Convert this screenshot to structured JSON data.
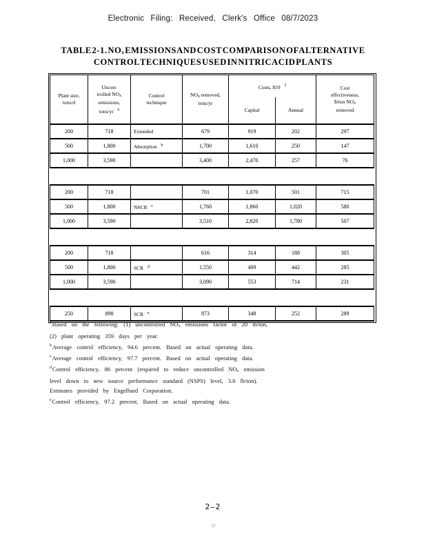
{
  "page": {
    "top_header": "Electronic Filing: Received, Clerk's Office 08/7/2023",
    "page_number": "2—2",
    "footer_mark": "18"
  },
  "title": {
    "line1": "TABLE 2-1. NO{sub:x} EMISSIONS AND COST COMPARISON OF ALTERNATIVE",
    "line2": "CONTROL TECHNIQUES USED IN NITRIC ACID PLANTS"
  },
  "table": {
    "headers": {
      "plant": "Plant size,{br}tons/d",
      "uncontrolled": "Uncon-{br}trolled NO{sub:x}{br}emissions,{br}tons/yr{gap}{sup:a}",
      "technique": "Control{br}technique",
      "removed": "NO{sub:x} removed,{br}tons/yr",
      "costs_group": "Costs, $10{gap}{sup:3}",
      "capital": "Capital",
      "annual": "Annual",
      "cost_effectiveness": "Cost{br}effectiveness,{br}$/ton NO{sub:x}{br}removed"
    },
    "rows": [
      {
        "type": "data",
        "plant": "200",
        "uncontrolled": "718",
        "technique": "Extended",
        "removed": "679",
        "capital": "919",
        "annual": "202",
        "cost_eff": "297"
      },
      {
        "type": "data",
        "plant": "500",
        "uncontrolled": "1,800",
        "technique": "Absorption{gap}{sup:b}",
        "removed": "1,700",
        "capital": "1,610",
        "annual": "250",
        "cost_eff": "147"
      },
      {
        "type": "data",
        "plant": "1,000",
        "uncontrolled": "3,590",
        "technique": "",
        "removed": "3,400",
        "capital": "2,470",
        "annual": "257",
        "cost_eff": "76"
      },
      {
        "type": "spacer"
      },
      {
        "type": "data",
        "plant": "200",
        "uncontrolled": "718",
        "technique": "",
        "removed": "701",
        "capital": "1,070",
        "annual": "501",
        "cost_eff": "715"
      },
      {
        "type": "data",
        "plant": "500",
        "uncontrolled": "1,800",
        "technique": "NSCR{gap}{sup:c}",
        "removed": "1,760",
        "capital": "1,860",
        "annual": "1,020",
        "cost_eff": "580"
      },
      {
        "type": "data",
        "plant": "1,000",
        "uncontrolled": "3,590",
        "technique": "",
        "removed": "3,510",
        "capital": "2,820",
        "annual": "1,780",
        "cost_eff": "507"
      },
      {
        "type": "spacer"
      },
      {
        "type": "data",
        "plant": "200",
        "uncontrolled": "718",
        "technique": "",
        "removed": "616",
        "capital": "314",
        "annual": "188",
        "cost_eff": "305"
      },
      {
        "type": "data",
        "plant": "500",
        "uncontrolled": "1,800",
        "technique": "SCR{gap}{sup:d}",
        "removed": "1,550",
        "capital": "409",
        "annual": "442",
        "cost_eff": "285"
      },
      {
        "type": "data",
        "plant": "1,000",
        "uncontrolled": "3,590",
        "technique": "",
        "removed": "3,090",
        "capital": "553",
        "annual": "714",
        "cost_eff": "231"
      },
      {
        "type": "spacer"
      },
      {
        "type": "data",
        "plant": "250",
        "uncontrolled": "898",
        "technique": "SCR{gap}{sup:e}",
        "removed": "873",
        "capital": "348",
        "annual": "252",
        "cost_eff": "289"
      }
    ]
  },
  "footnotes": [
    {
      "marker": "a",
      "lines": [
        "Based on the following: (1) uncontrolled NO{sub:x} emissions factor of 20 lb/ton,",
        "(2) plant operating 359 days per year."
      ]
    },
    {
      "marker": "b",
      "lines": [
        "Average control efficiency, 94.6 percent. Based on actual operating data."
      ]
    },
    {
      "marker": "c",
      "lines": [
        "Average control efficiency, 97.7 percent. Based on actual operating data."
      ]
    },
    {
      "marker": "d",
      "lines": [
        "Control efficiency, 86 percent (required to reduce uncontrolled NO{sub:x} emission",
        "level down to new source performance standard (NSPS) level, 3.0 lb/ton).",
        "Estimates provided by Engelhard Corporation."
      ]
    },
    {
      "marker": "e",
      "lines": [
        "Control efficiency, 97.2 percent. Based on actual operating data."
      ]
    }
  ]
}
